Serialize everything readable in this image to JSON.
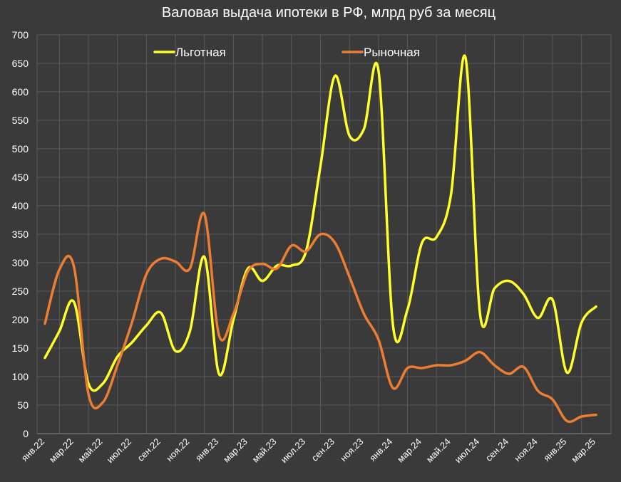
{
  "chart_data": {
    "type": "line",
    "title": "Валовая выдача ипотеки в РФ, млрд руб за месяц",
    "xlabel": "",
    "ylabel": "",
    "ylim": [
      0,
      700
    ],
    "yticks": [
      0,
      50,
      100,
      150,
      200,
      250,
      300,
      350,
      400,
      450,
      500,
      550,
      600,
      650,
      700
    ],
    "grid": true,
    "legend": "top",
    "categories": [
      "янв.22",
      "фев.22",
      "мар.22",
      "апр.22",
      "май.22",
      "июн.22",
      "июл.22",
      "авг.22",
      "сен.22",
      "окт.22",
      "ноя.22",
      "дек.22",
      "янв.23",
      "фев.23",
      "мар.23",
      "апр.23",
      "май.23",
      "июн.23",
      "июл.23",
      "авг.23",
      "сен.23",
      "окт.23",
      "ноя.23",
      "дек.23",
      "янв.24",
      "фев.24",
      "мар.24",
      "апр.24",
      "май.24",
      "июн.24",
      "июл.24",
      "авг.24",
      "сен.24",
      "окт.24",
      "ноя.24",
      "дек.24",
      "янв.25",
      "фев.25",
      "мар.25"
    ],
    "tick_labels": [
      "янв.22",
      "",
      "мар.22",
      "",
      "май.22",
      "",
      "июл.22",
      "",
      "сен.22",
      "",
      "ноя.22",
      "",
      "янв.23",
      "",
      "мар.23",
      "",
      "май.23",
      "",
      "июл.23",
      "",
      "сен.23",
      "",
      "ноя.23",
      "",
      "янв.24",
      "",
      "мар.24",
      "",
      "май.24",
      "",
      "июл.24",
      "",
      "сен.24",
      "",
      "ноя.24",
      "",
      "янв.25",
      "",
      "мар.25"
    ],
    "series": [
      {
        "name": "Льготная",
        "color": "#ffff2a",
        "values": [
          133,
          180,
          231,
          88,
          88,
          135,
          160,
          190,
          212,
          145,
          180,
          310,
          105,
          200,
          290,
          268,
          295,
          295,
          320,
          470,
          628,
          523,
          535,
          637,
          190,
          218,
          335,
          345,
          420,
          660,
          210,
          255,
          268,
          245,
          203,
          235,
          107,
          195,
          223
        ]
      },
      {
        "name": "Рыночная",
        "color": "#ed7d31",
        "values": [
          193,
          288,
          293,
          70,
          55,
          120,
          195,
          280,
          307,
          302,
          290,
          385,
          173,
          210,
          285,
          298,
          290,
          330,
          320,
          350,
          335,
          275,
          210,
          165,
          80,
          115,
          115,
          120,
          120,
          128,
          143,
          120,
          105,
          117,
          75,
          60,
          22,
          30,
          33
        ]
      }
    ]
  }
}
